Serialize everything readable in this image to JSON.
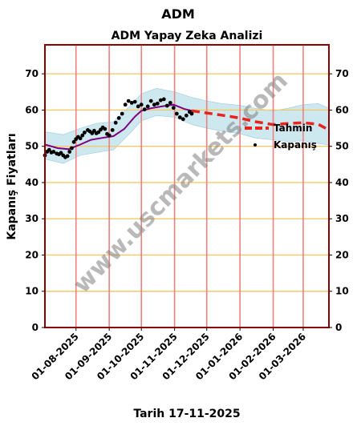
{
  "header": {
    "ticker": "ADM",
    "title": "ADM Yapay Zeka Analizi",
    "ylabel": "Kapanış Fiyatları",
    "footer": "Tarih 17-11-2025",
    "watermark": "www.uscmarkets.com"
  },
  "legend": {
    "forecast": "Tahmin",
    "close": "Kapanış"
  },
  "colors": {
    "frame": "#8b0000",
    "vgrid": "#f08080",
    "hgrid": "#f5c96a",
    "band": "#add8e6",
    "ma": "#800080",
    "forecast": "#e8231c",
    "close": "#000000"
  },
  "chart_data": {
    "type": "line",
    "title": "ADM Yapay Zeka Analizi",
    "xlabel": "Tarih 17-11-2025",
    "ylabel": "Kapanış Fiyatları",
    "ylim": [
      0,
      78
    ],
    "xlim": [
      "2025-07-03",
      "2026-03-25"
    ],
    "yticks": [
      0,
      10,
      20,
      30,
      40,
      50,
      60,
      70
    ],
    "xticks": [
      "01-08-2025",
      "01-09-2025",
      "01-10-2025",
      "01-11-2025",
      "01-12-2025",
      "01-01-2026",
      "01-02-2026",
      "01-03-2026"
    ],
    "vlines": [
      "2025-08-01",
      "2025-09-01",
      "2025-10-01",
      "2025-11-01",
      "2025-12-01",
      "2026-01-01",
      "2026-02-01",
      "2026-03-01"
    ],
    "grid": true,
    "legend_position": "right",
    "series": [
      {
        "name": "Kapanış",
        "style": "points",
        "x": [
          "2025-07-03",
          "2025-07-05",
          "2025-07-07",
          "2025-07-09",
          "2025-07-11",
          "2025-07-14",
          "2025-07-16",
          "2025-07-18",
          "2025-07-20",
          "2025-07-22",
          "2025-07-24",
          "2025-07-26",
          "2025-07-28",
          "2025-07-30",
          "2025-08-01",
          "2025-08-03",
          "2025-08-05",
          "2025-08-07",
          "2025-08-09",
          "2025-08-12",
          "2025-08-14",
          "2025-08-16",
          "2025-08-18",
          "2025-08-20",
          "2025-08-22",
          "2025-08-24",
          "2025-08-26",
          "2025-08-28",
          "2025-08-30",
          "2025-09-01",
          "2025-09-04",
          "2025-09-07",
          "2025-09-10",
          "2025-09-13",
          "2025-09-16",
          "2025-09-19",
          "2025-09-22",
          "2025-09-25",
          "2025-09-28",
          "2025-10-01",
          "2025-10-04",
          "2025-10-07",
          "2025-10-10",
          "2025-10-13",
          "2025-10-16",
          "2025-10-19",
          "2025-10-22",
          "2025-10-25",
          "2025-10-28",
          "2025-10-31",
          "2025-11-03",
          "2025-11-06",
          "2025-11-09",
          "2025-11-12",
          "2025-11-15",
          "2025-11-17"
        ],
        "y": [
          47.5,
          48.5,
          49.0,
          48.3,
          48.5,
          48.0,
          47.8,
          48.2,
          47.5,
          47.0,
          47.3,
          48.5,
          49.5,
          51.2,
          52.0,
          52.6,
          52.2,
          53.0,
          53.8,
          54.5,
          54.1,
          53.6,
          54.3,
          53.6,
          53.9,
          54.6,
          55.2,
          54.8,
          53.4,
          53.0,
          54.5,
          56.5,
          57.8,
          59.0,
          61.5,
          62.5,
          62.0,
          62.3,
          61.0,
          61.5,
          60.2,
          61.0,
          62.5,
          61.5,
          61.8,
          62.7,
          63.0,
          61.2,
          62.0,
          60.6,
          59.0,
          58.0,
          57.5,
          58.5,
          59.5,
          59.0
        ]
      },
      {
        "name": "",
        "style": "line",
        "x": [
          "2025-07-03",
          "2025-07-15",
          "2025-07-25",
          "2025-08-05",
          "2025-08-15",
          "2025-08-25",
          "2025-09-05",
          "2025-09-15",
          "2025-09-25",
          "2025-10-01",
          "2025-10-10",
          "2025-10-20",
          "2025-10-31",
          "2025-11-10",
          "2025-11-17"
        ],
        "y": [
          50.5,
          49.5,
          49.2,
          50.5,
          51.8,
          52.3,
          52.8,
          54.8,
          58.2,
          59.8,
          60.5,
          61.0,
          61.5,
          60.3,
          59.8
        ]
      },
      {
        "name": "Tahmin",
        "style": "dashed",
        "x": [
          "2025-11-17",
          "2025-12-01",
          "2025-12-15",
          "2026-01-01",
          "2026-01-15",
          "2026-02-01",
          "2026-02-15",
          "2026-03-01",
          "2026-03-15",
          "2026-03-25"
        ],
        "y": [
          59.8,
          59.2,
          58.6,
          57.8,
          56.8,
          56.0,
          56.3,
          56.5,
          56.1,
          54.5
        ]
      },
      {
        "name": "",
        "style": "band",
        "x": [
          "2025-07-03",
          "2025-07-20",
          "2025-08-05",
          "2025-08-20",
          "2025-09-05",
          "2025-09-20",
          "2025-10-01",
          "2025-10-15",
          "2025-11-01",
          "2025-11-17",
          "2025-12-01",
          "2025-12-15",
          "2026-01-01",
          "2026-01-15",
          "2026-02-01",
          "2026-02-15",
          "2026-03-01",
          "2026-03-15",
          "2026-03-25"
        ],
        "upper": [
          54.0,
          53.2,
          55.0,
          56.3,
          56.8,
          61.0,
          64.5,
          66.0,
          65.0,
          63.5,
          62.5,
          61.8,
          61.3,
          60.5,
          59.8,
          60.5,
          61.5,
          61.8,
          60.5
        ],
        "lower": [
          46.5,
          45.3,
          47.5,
          48.3,
          49.0,
          53.5,
          57.0,
          58.5,
          58.0,
          56.0,
          55.0,
          54.2,
          53.5,
          52.3,
          51.8,
          51.3,
          51.5,
          50.8,
          50.3
        ]
      }
    ]
  }
}
